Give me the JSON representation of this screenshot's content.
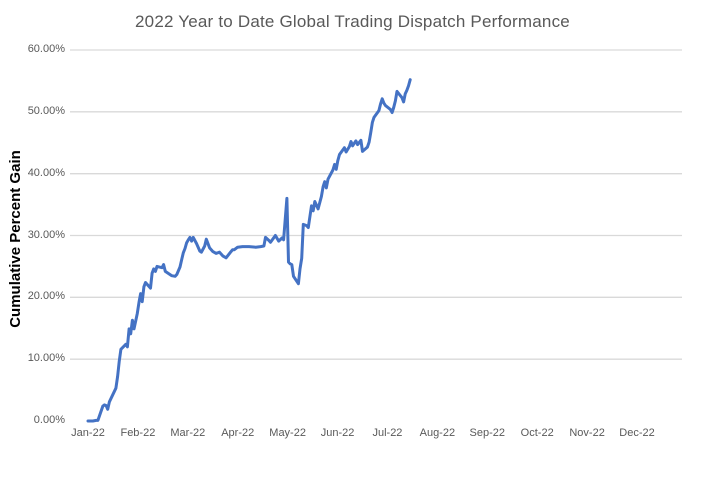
{
  "colors": {
    "background": "#ffffff",
    "line": "#4472C4",
    "gridline": "#D9D9D9",
    "title_text": "#595959",
    "tick_text": "#595959",
    "y_axis_title_text": "#000000"
  },
  "chart_data": {
    "type": "line",
    "title": "2022 Year to Date Global Trading Dispatch Performance",
    "xlabel": "",
    "ylabel": "Cumulative Percent Gain",
    "ylim": [
      0,
      60
    ],
    "legend": "none",
    "grid": "horizontal gridlines at 10% steps from 10% to 60%; no 0% baseline, no axis lines",
    "y_ticks": [
      {
        "value": 0,
        "label": "0.00%"
      },
      {
        "value": 10,
        "label": "10.00%"
      },
      {
        "value": 20,
        "label": "20.00%"
      },
      {
        "value": 30,
        "label": "30.00%"
      },
      {
        "value": 40,
        "label": "40.00%"
      },
      {
        "value": 50,
        "label": "50.00%"
      },
      {
        "value": 60,
        "label": "60.00%"
      }
    ],
    "x_tick_labels": [
      "Jan-22",
      "Feb-22",
      "Mar-22",
      "Apr-22",
      "May-22",
      "Jun-22",
      "Jul-22",
      "Aug-22",
      "Sep-22",
      "Oct-22",
      "Nov-22",
      "Dec-22"
    ],
    "x_axis_note": "daily series plotted across calendar year 2022; data ends mid-July",
    "series": [
      {
        "name": "cumulative-percent-gain",
        "color": "#4472C4",
        "stroke_width": 3,
        "points_day_pct": [
          [
            1,
            0
          ],
          [
            4,
            0
          ],
          [
            6,
            0.1
          ],
          [
            7,
            0.1
          ],
          [
            10,
            2.4
          ],
          [
            11,
            2.6
          ],
          [
            12,
            2.5
          ],
          [
            13,
            1.9
          ],
          [
            14,
            3.1
          ],
          [
            18,
            5.3
          ],
          [
            19,
            7.2
          ],
          [
            20,
            9.6
          ],
          [
            21,
            11.6
          ],
          [
            24,
            12.4
          ],
          [
            25,
            12.0
          ],
          [
            26,
            14.9
          ],
          [
            27,
            14.1
          ],
          [
            28,
            16.3
          ],
          [
            29,
            14.9
          ],
          [
            31,
            17.4
          ],
          [
            32,
            19.2
          ],
          [
            33,
            20.6
          ],
          [
            34,
            19.3
          ],
          [
            35,
            21.7
          ],
          [
            36,
            22.4
          ],
          [
            39,
            21.5
          ],
          [
            40,
            23.9
          ],
          [
            41,
            24.6
          ],
          [
            42,
            24.2
          ],
          [
            43,
            25.0
          ],
          [
            46,
            24.8
          ],
          [
            47,
            25.3
          ],
          [
            48,
            24.2
          ],
          [
            52,
            23.5
          ],
          [
            54,
            23.4
          ],
          [
            55,
            23.7
          ],
          [
            57,
            24.9
          ],
          [
            58,
            26.1
          ],
          [
            59,
            27.2
          ],
          [
            60,
            27.9
          ],
          [
            61,
            28.8
          ],
          [
            62,
            29.3
          ],
          [
            63,
            29.7
          ],
          [
            64,
            29.1
          ],
          [
            65,
            29.7
          ],
          [
            67,
            28.7
          ],
          [
            69,
            27.5
          ],
          [
            70,
            27.3
          ],
          [
            72,
            28.3
          ],
          [
            73,
            29.4
          ],
          [
            75,
            28.0
          ],
          [
            77,
            27.4
          ],
          [
            79,
            27.1
          ],
          [
            81,
            27.3
          ],
          [
            83,
            26.7
          ],
          [
            85,
            26.4
          ],
          [
            88,
            27.4
          ],
          [
            89,
            27.7
          ],
          [
            90,
            27.7
          ],
          [
            92,
            28.1
          ],
          [
            95,
            28.2
          ],
          [
            99,
            28.2
          ],
          [
            103,
            28.1
          ],
          [
            106,
            28.2
          ],
          [
            108,
            28.3
          ],
          [
            109,
            29.7
          ],
          [
            111,
            29.2
          ],
          [
            112,
            28.9
          ],
          [
            115,
            30.0
          ],
          [
            117,
            29.1
          ],
          [
            119,
            29.6
          ],
          [
            120,
            29.3
          ],
          [
            122,
            36.0
          ],
          [
            123,
            25.7
          ],
          [
            124,
            25.4
          ],
          [
            125,
            25.3
          ],
          [
            126,
            23.4
          ],
          [
            129,
            22.2
          ],
          [
            130,
            24.6
          ],
          [
            131,
            26.3
          ],
          [
            132,
            31.8
          ],
          [
            134,
            31.6
          ],
          [
            135,
            31.3
          ],
          [
            137,
            34.8
          ],
          [
            138,
            34.0
          ],
          [
            139,
            35.5
          ],
          [
            141,
            34.3
          ],
          [
            143,
            36.3
          ],
          [
            144,
            37.9
          ],
          [
            145,
            38.7
          ],
          [
            146,
            37.7
          ],
          [
            147,
            39.1
          ],
          [
            150,
            40.6
          ],
          [
            151,
            41.5
          ],
          [
            152,
            40.7
          ],
          [
            153,
            42.1
          ],
          [
            154,
            43.1
          ],
          [
            157,
            44.2
          ],
          [
            158,
            43.5
          ],
          [
            160,
            44.4
          ],
          [
            161,
            45.2
          ],
          [
            162,
            44.5
          ],
          [
            164,
            45.3
          ],
          [
            165,
            44.7
          ],
          [
            167,
            45.4
          ],
          [
            168,
            43.6
          ],
          [
            171,
            44.3
          ],
          [
            172,
            45.1
          ],
          [
            173,
            46.6
          ],
          [
            174,
            48.3
          ],
          [
            175,
            49.1
          ],
          [
            178,
            50.2
          ],
          [
            179,
            51.3
          ],
          [
            180,
            52.1
          ],
          [
            181,
            51.4
          ],
          [
            182,
            51.0
          ],
          [
            185,
            50.4
          ],
          [
            186,
            49.9
          ],
          [
            187,
            50.7
          ],
          [
            188,
            51.8
          ],
          [
            189,
            53.3
          ],
          [
            192,
            52.3
          ],
          [
            193,
            51.6
          ],
          [
            194,
            52.9
          ],
          [
            195,
            53.5
          ],
          [
            196,
            54.2
          ],
          [
            197,
            55.2
          ]
        ]
      }
    ]
  }
}
